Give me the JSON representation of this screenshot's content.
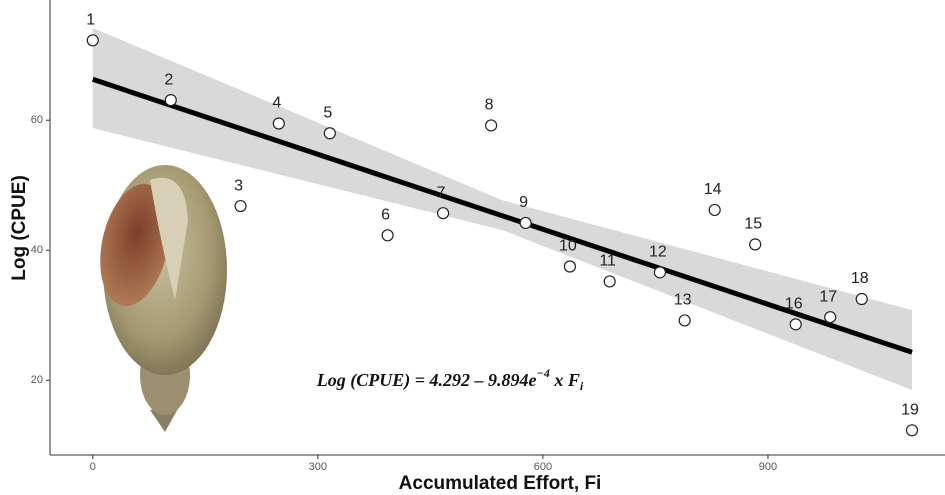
{
  "chart_data": {
    "type": "scatter",
    "x_label": "Accumulated Effort, Fi",
    "y_label": "Log (CPUE)",
    "xlim": [
      -57,
      1136
    ],
    "ylim": [
      8.5,
      78.5
    ],
    "xticks": [
      0,
      300,
      600,
      900
    ],
    "yticks": [
      20,
      40,
      60
    ],
    "labels": [
      "1",
      "2",
      "3",
      "4",
      "5",
      "6",
      "7",
      "8",
      "9",
      "10",
      "11",
      "12",
      "13",
      "14",
      "15",
      "16",
      "17",
      "18",
      "19"
    ],
    "x": [
      0,
      104,
      197,
      248,
      316,
      393,
      467,
      531,
      577,
      636,
      689,
      756,
      789,
      829,
      883,
      937,
      983,
      1025,
      1092
    ],
    "values": [
      72.3,
      63.1,
      46.8,
      59.5,
      58.0,
      42.3,
      45.7,
      59.2,
      44.2,
      37.5,
      35.2,
      36.6,
      29.2,
      46.2,
      40.9,
      28.6,
      29.7,
      32.5,
      12.3
    ],
    "fit": {
      "x": [
        0,
        1092
      ],
      "values": [
        66.3,
        24.3
      ],
      "color": "#000000"
    },
    "band": {
      "x": [
        0,
        546,
        1092
      ],
      "lower": [
        58.8,
        43.1,
        18.5
      ],
      "upper": [
        74.2,
        47.7,
        30.8
      ],
      "color": "#d9d9d9"
    },
    "equation": [
      "Log (CPUE) = 4.292 – 9.894e",
      "−4",
      " x F",
      "i"
    ]
  }
}
